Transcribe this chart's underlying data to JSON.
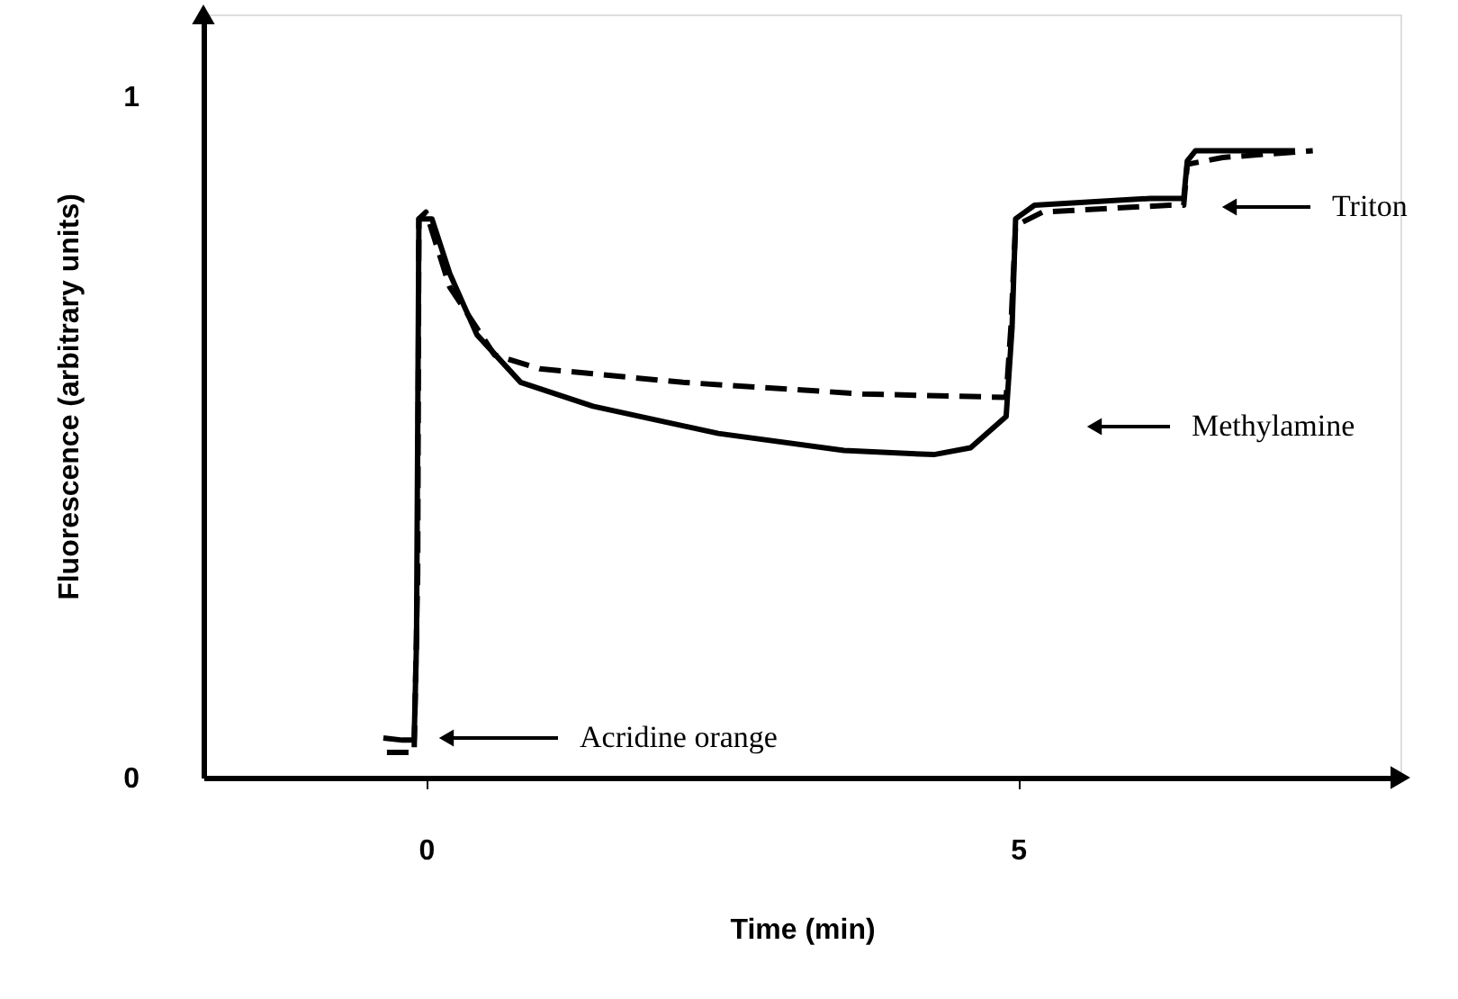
{
  "chart_data": {
    "type": "line",
    "xlabel": "Time (min)",
    "ylabel": "Fluorescence (arbitrary units)",
    "xlim": [
      -1.88,
      8.23
    ],
    "ylim": [
      0,
      1.12
    ],
    "xticks": [
      0,
      5
    ],
    "yticks": [
      0,
      1
    ],
    "grid": false,
    "marker": "none",
    "series": [
      {
        "color": "#000000",
        "line_style": "solid",
        "x": [
          -0.36,
          -0.2,
          -0.1,
          -0.08,
          -0.06,
          0.05,
          0.2,
          0.43,
          0.8,
          1.41,
          2.47,
          3.53,
          4.29,
          4.6,
          4.9,
          4.95,
          4.98,
          5.14,
          6.12,
          6.4,
          6.43,
          6.5,
          7.04,
          7.34
        ],
        "values": [
          0.058,
          0.055,
          0.055,
          0.2,
          0.82,
          0.82,
          0.74,
          0.65,
          0.58,
          0.545,
          0.505,
          0.48,
          0.474,
          0.484,
          0.53,
          0.66,
          0.82,
          0.84,
          0.85,
          0.85,
          0.905,
          0.92,
          0.92,
          0.92
        ]
      },
      {
        "color": "#000000",
        "line_style": "dashed",
        "x": [
          -0.33,
          -0.1,
          -0.07,
          -0.06,
          0,
          0.2,
          0.58,
          0.96,
          2.17,
          3.69,
          4.9,
          4.94,
          4.98,
          5.21,
          6.28,
          6.4,
          6.43,
          6.73,
          7.49
        ],
        "values": [
          0.037,
          0.037,
          0.3,
          0.82,
          0.83,
          0.72,
          0.62,
          0.6,
          0.58,
          0.563,
          0.558,
          0.66,
          0.81,
          0.83,
          0.84,
          0.84,
          0.9,
          0.91,
          0.92
        ]
      }
    ],
    "annotations": [
      "Acridine orange",
      "Methylamine",
      "Triton"
    ]
  }
}
